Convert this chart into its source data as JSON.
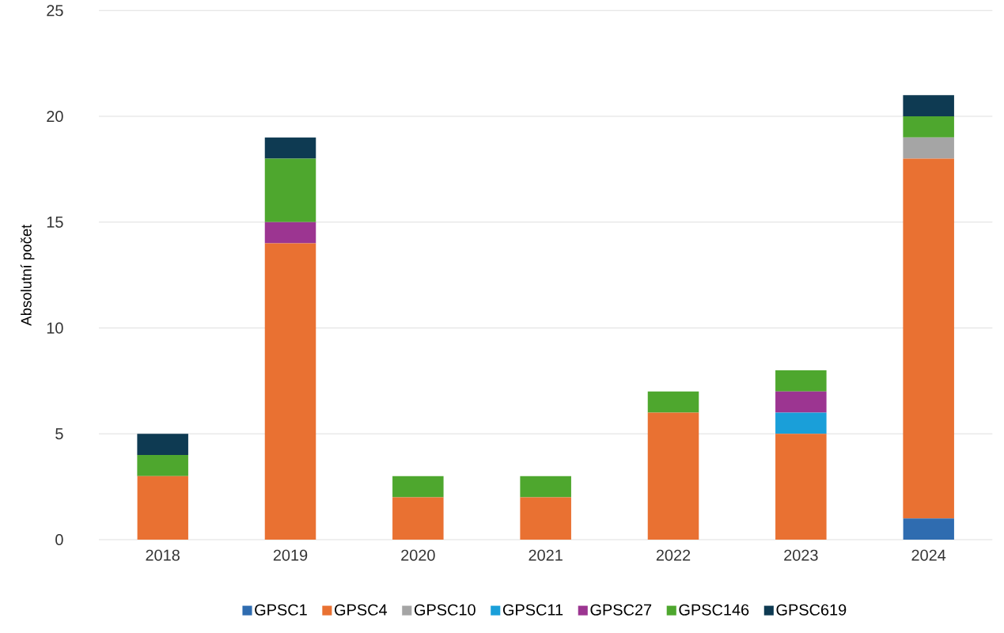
{
  "chart_data": {
    "type": "bar",
    "stacked": true,
    "ylabel": "Absolutní počet",
    "categories": [
      "2018",
      "2019",
      "2020",
      "2021",
      "2022",
      "2023",
      "2024"
    ],
    "series": [
      {
        "name": "GPSC1",
        "color": "#2f6cb0",
        "values": [
          0,
          0,
          0,
          0,
          0,
          0,
          1
        ]
      },
      {
        "name": "GPSC4",
        "color": "#e97132",
        "values": [
          3,
          14,
          2,
          2,
          6,
          5,
          17
        ]
      },
      {
        "name": "GPSC10",
        "color": "#a5a5a5",
        "values": [
          0,
          0,
          0,
          0,
          0,
          0,
          1
        ]
      },
      {
        "name": "GPSC11",
        "color": "#1a9fd9",
        "values": [
          0,
          0,
          0,
          0,
          0,
          1,
          0
        ]
      },
      {
        "name": "GPSC27",
        "color": "#9c3591",
        "values": [
          0,
          1,
          0,
          0,
          0,
          1,
          0
        ]
      },
      {
        "name": "GPSC146",
        "color": "#4ea72e",
        "values": [
          1,
          3,
          1,
          1,
          1,
          1,
          1
        ]
      },
      {
        "name": "GPSC619",
        "color": "#0e3a52",
        "values": [
          1,
          1,
          0,
          0,
          0,
          0,
          1
        ]
      }
    ],
    "ylim": [
      0,
      25
    ],
    "yticks": [
      0,
      5,
      10,
      15,
      20,
      25
    ],
    "grid": "y",
    "legend": "bottom"
  }
}
